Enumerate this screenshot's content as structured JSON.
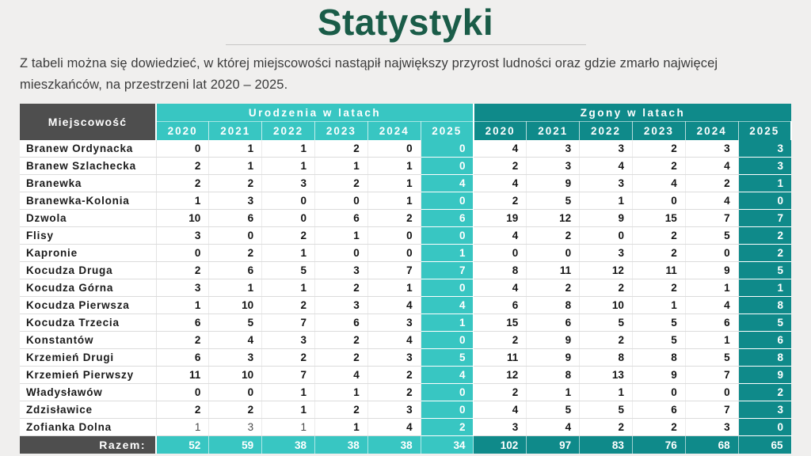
{
  "page": {
    "title": "Statystyki",
    "description_line1": "Z  tabeli można się dowiedzieć, w której miejscowości nastąpił największy przyrost ludności oraz gdzie zmarło najwięcej",
    "description_line2": "mieszkańców, na przestrzeni lat 2020 – 2025."
  },
  "colors": {
    "title_green": "#1a5c48",
    "births_turquoise": "#38c6c2",
    "deaths_teal": "#0f8a8a",
    "header_gray": "#4e4e4e",
    "page_background": "#f0efee"
  },
  "table": {
    "location_header": "Miejscowość",
    "births_header": "Urodzenia w latach",
    "deaths_header": "Zgony w latach",
    "years": [
      "2020",
      "2021",
      "2022",
      "2023",
      "2024",
      "2025"
    ],
    "total_label": "Razem:",
    "rows": [
      {
        "name": "Branew Ordynacka",
        "births": [
          0,
          1,
          1,
          2,
          0,
          0
        ],
        "deaths": [
          4,
          3,
          3,
          2,
          3,
          3
        ]
      },
      {
        "name": "Branew Szlachecka",
        "births": [
          2,
          1,
          1,
          1,
          1,
          0
        ],
        "deaths": [
          2,
          3,
          4,
          2,
          4,
          3
        ]
      },
      {
        "name": "Branewka",
        "births": [
          2,
          2,
          3,
          2,
          1,
          4
        ],
        "deaths": [
          4,
          9,
          3,
          4,
          2,
          1
        ]
      },
      {
        "name": "Branewka-Kolonia",
        "births": [
          1,
          3,
          0,
          0,
          1,
          0
        ],
        "deaths": [
          2,
          5,
          1,
          0,
          4,
          0
        ]
      },
      {
        "name": "Dzwola",
        "births": [
          10,
          6,
          0,
          6,
          2,
          6
        ],
        "deaths": [
          19,
          12,
          9,
          15,
          7,
          7
        ]
      },
      {
        "name": "Flisy",
        "births": [
          3,
          0,
          2,
          1,
          0,
          0
        ],
        "deaths": [
          4,
          2,
          0,
          2,
          5,
          2
        ]
      },
      {
        "name": "Kapronie",
        "births": [
          0,
          2,
          1,
          0,
          0,
          1
        ],
        "deaths": [
          0,
          0,
          3,
          2,
          0,
          2
        ]
      },
      {
        "name": "Kocudza Druga",
        "births": [
          2,
          6,
          5,
          3,
          7,
          7
        ],
        "deaths": [
          8,
          11,
          12,
          11,
          9,
          5
        ]
      },
      {
        "name": "Kocudza Górna",
        "births": [
          3,
          1,
          1,
          2,
          1,
          0
        ],
        "deaths": [
          4,
          2,
          2,
          2,
          1,
          1
        ]
      },
      {
        "name": "Kocudza Pierwsza",
        "births": [
          1,
          10,
          2,
          3,
          4,
          4
        ],
        "deaths": [
          6,
          8,
          10,
          1,
          4,
          8
        ]
      },
      {
        "name": "Kocudza Trzecia",
        "births": [
          6,
          5,
          7,
          6,
          3,
          1
        ],
        "deaths": [
          15,
          6,
          5,
          5,
          6,
          5
        ]
      },
      {
        "name": "Konstantów",
        "births": [
          2,
          4,
          3,
          2,
          4,
          0
        ],
        "deaths": [
          2,
          9,
          2,
          5,
          1,
          6
        ]
      },
      {
        "name": "Krzemień Drugi",
        "births": [
          6,
          3,
          2,
          2,
          3,
          5
        ],
        "deaths": [
          11,
          9,
          8,
          8,
          5,
          8
        ]
      },
      {
        "name": "Krzemień Pierwszy",
        "births": [
          11,
          10,
          7,
          4,
          2,
          4
        ],
        "deaths": [
          12,
          8,
          13,
          9,
          7,
          9
        ]
      },
      {
        "name": "Władysławów",
        "births": [
          0,
          0,
          1,
          1,
          2,
          0
        ],
        "deaths": [
          2,
          1,
          1,
          0,
          0,
          2
        ]
      },
      {
        "name": "Zdzisławice",
        "births": [
          2,
          2,
          1,
          2,
          3,
          0
        ],
        "deaths": [
          4,
          5,
          5,
          6,
          7,
          3
        ]
      },
      {
        "name": "Zofianka Dolna",
        "births": [
          1,
          3,
          1,
          1,
          4,
          2
        ],
        "deaths": [
          3,
          4,
          2,
          2,
          3,
          0
        ],
        "light_births": [
          0,
          1,
          2
        ]
      }
    ],
    "totals": {
      "births": [
        52,
        59,
        38,
        38,
        38,
        34
      ],
      "deaths": [
        102,
        97,
        83,
        76,
        68,
        65
      ]
    }
  }
}
